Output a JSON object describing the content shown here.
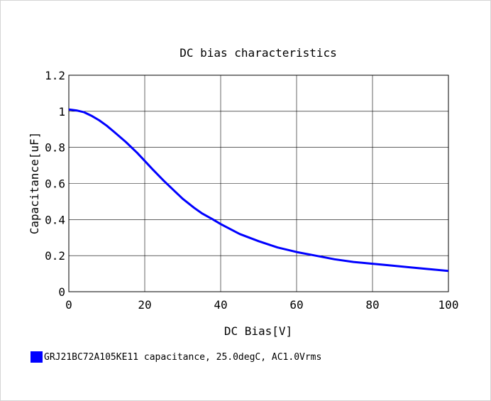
{
  "chart_data": {
    "type": "line",
    "title": "DC bias characteristics",
    "xlabel": "DC Bias[V]",
    "ylabel": "Capacitance[uF]",
    "xlim": [
      0,
      100
    ],
    "ylim": [
      0,
      1.2
    ],
    "x_ticks": [
      "0",
      "20",
      "40",
      "60",
      "80",
      "100"
    ],
    "y_ticks": [
      "0",
      "0.2",
      "0.4",
      "0.6",
      "0.8",
      "1",
      "1.2"
    ],
    "grid": true,
    "legend_position": "bottom-left",
    "series": [
      {
        "name": "GRJ21BC72A105KE11 capacitance, 25.0degC, AC1.0Vrms",
        "color": "#0000ff",
        "x": [
          0,
          2,
          4,
          6,
          8,
          10,
          12,
          15,
          18,
          20,
          22,
          25,
          28,
          30,
          33,
          35,
          38,
          40,
          45,
          50,
          55,
          60,
          65,
          70,
          75,
          80,
          85,
          90,
          95,
          100
        ],
        "y": [
          1.01,
          1.005,
          0.995,
          0.975,
          0.95,
          0.92,
          0.885,
          0.83,
          0.77,
          0.725,
          0.68,
          0.615,
          0.555,
          0.515,
          0.465,
          0.435,
          0.4,
          0.375,
          0.32,
          0.28,
          0.245,
          0.22,
          0.2,
          0.18,
          0.165,
          0.155,
          0.145,
          0.135,
          0.125,
          0.115
        ]
      }
    ]
  }
}
